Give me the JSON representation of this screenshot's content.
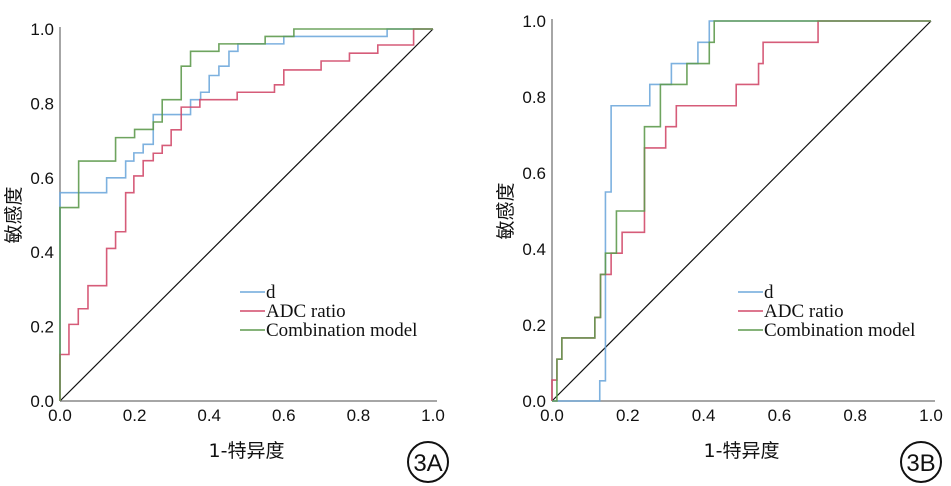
{
  "chart_data": [
    {
      "type": "line",
      "panel_label": "3A",
      "xlabel": "1-特异度",
      "ylabel": "敏感度",
      "xlim": [
        0,
        1
      ],
      "ylim": [
        0,
        1
      ],
      "xticks": [
        "0.0",
        "0.2",
        "0.4",
        "0.6",
        "0.8",
        "1.0"
      ],
      "yticks": [
        "0.0",
        "0.2",
        "0.4",
        "0.6",
        "0.8",
        "1.0"
      ],
      "legend_position": "bottom-right",
      "reference_line": true,
      "series": [
        {
          "name": "d",
          "color": "#6fa8dc",
          "steps": [
            [
              0,
              0.56
            ],
            [
              0.125,
              0.6
            ],
            [
              0.176,
              0.645
            ],
            [
              0.198,
              0.667
            ],
            [
              0.223,
              0.69
            ],
            [
              0.25,
              0.77
            ],
            [
              0.35,
              0.81
            ],
            [
              0.377,
              0.83
            ],
            [
              0.4,
              0.875
            ],
            [
              0.426,
              0.9
            ],
            [
              0.453,
              0.94
            ],
            [
              0.477,
              0.96
            ],
            [
              0.6,
              0.98
            ],
            [
              0.877,
              1.0
            ],
            [
              1,
              1
            ]
          ]
        },
        {
          "name": "ADC ratio",
          "color": "#d24a6a",
          "steps": [
            [
              0,
              0.125
            ],
            [
              0.024,
              0.206
            ],
            [
              0.049,
              0.248
            ],
            [
              0.075,
              0.31
            ],
            [
              0.125,
              0.41
            ],
            [
              0.149,
              0.455
            ],
            [
              0.176,
              0.56
            ],
            [
              0.198,
              0.605
            ],
            [
              0.223,
              0.646
            ],
            [
              0.25,
              0.666
            ],
            [
              0.274,
              0.687
            ],
            [
              0.298,
              0.729
            ],
            [
              0.325,
              0.79
            ],
            [
              0.375,
              0.81
            ],
            [
              0.475,
              0.83
            ],
            [
              0.55,
              0.83
            ],
            [
              0.575,
              0.85
            ],
            [
              0.6,
              0.89
            ],
            [
              0.7,
              0.914
            ],
            [
              0.776,
              0.935
            ],
            [
              0.852,
              0.957
            ],
            [
              0.948,
              1.0
            ],
            [
              1,
              1
            ]
          ]
        },
        {
          "name": "Combination model",
          "color": "#5e9a4e",
          "steps": [
            [
              0,
              0.52
            ],
            [
              0.05,
              0.645
            ],
            [
              0.149,
              0.708
            ],
            [
              0.2,
              0.73
            ],
            [
              0.25,
              0.75
            ],
            [
              0.274,
              0.81
            ],
            [
              0.325,
              0.9
            ],
            [
              0.35,
              0.94
            ],
            [
              0.426,
              0.96
            ],
            [
              0.55,
              0.98
            ],
            [
              0.627,
              1.0
            ],
            [
              1,
              1
            ]
          ]
        }
      ]
    },
    {
      "type": "line",
      "panel_label": "3B",
      "xlabel": "1-特异度",
      "ylabel": "敏感度",
      "xlim": [
        0,
        1
      ],
      "ylim": [
        0,
        1
      ],
      "xticks": [
        "0.0",
        "0.2",
        "0.4",
        "0.6",
        "0.8",
        "1.0"
      ],
      "yticks": [
        "0.0",
        "0.2",
        "0.4",
        "0.6",
        "0.8",
        "1.0"
      ],
      "legend_position": "bottom-right",
      "reference_line": true,
      "series": [
        {
          "name": "d",
          "color": "#6fa8dc",
          "steps": [
            [
              0,
              0
            ],
            [
              0.126,
              0.053
            ],
            [
              0.141,
              0.55
            ],
            [
              0.156,
              0.777
            ],
            [
              0.258,
              0.833
            ],
            [
              0.315,
              0.888
            ],
            [
              0.385,
              0.944
            ],
            [
              0.415,
              1.0
            ],
            [
              1,
              1
            ]
          ]
        },
        {
          "name": "ADC ratio",
          "color": "#d24a6a",
          "steps": [
            [
              0,
              0.055
            ],
            [
              0.013,
              0.11
            ],
            [
              0.026,
              0.166
            ],
            [
              0.113,
              0.22
            ],
            [
              0.128,
              0.333
            ],
            [
              0.156,
              0.389
            ],
            [
              0.185,
              0.444
            ],
            [
              0.244,
              0.666
            ],
            [
              0.3,
              0.722
            ],
            [
              0.328,
              0.777
            ],
            [
              0.486,
              0.833
            ],
            [
              0.545,
              0.888
            ],
            [
              0.557,
              0.944
            ],
            [
              0.702,
              1.0
            ],
            [
              1,
              1
            ]
          ]
        },
        {
          "name": "Combination model",
          "color": "#5e9a4e",
          "steps": [
            [
              0,
              0
            ],
            [
              0.013,
              0.11
            ],
            [
              0.026,
              0.166
            ],
            [
              0.113,
              0.22
            ],
            [
              0.128,
              0.333
            ],
            [
              0.141,
              0.389
            ],
            [
              0.17,
              0.5
            ],
            [
              0.244,
              0.722
            ],
            [
              0.286,
              0.833
            ],
            [
              0.356,
              0.888
            ],
            [
              0.415,
              0.944
            ],
            [
              0.428,
              1.0
            ],
            [
              1,
              1
            ]
          ]
        }
      ]
    }
  ]
}
